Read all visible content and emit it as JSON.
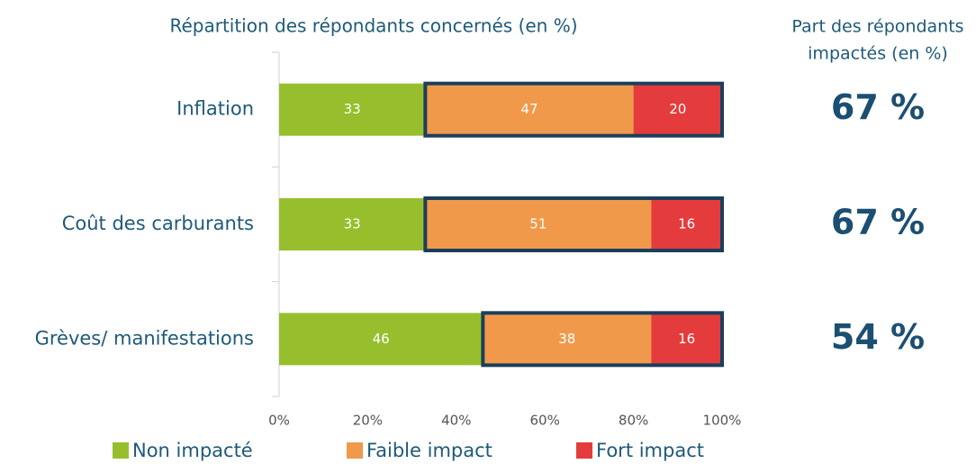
{
  "chart_data": {
    "type": "stacked-bar-horizontal",
    "title": "Répartition des répondants concernés (en %)",
    "categories": [
      "Inflation",
      "Coût des carburants",
      "Grèves/ manifestations"
    ],
    "series": [
      {
        "name": "Non impacté",
        "color": "#97bf2d",
        "values": [
          33,
          33,
          46
        ]
      },
      {
        "name": "Faible impact",
        "color": "#f0994b",
        "values": [
          47,
          51,
          38
        ]
      },
      {
        "name": "Fort impact",
        "color": "#e43b3c",
        "values": [
          20,
          16,
          16
        ]
      }
    ],
    "xlim": [
      0,
      100
    ],
    "xticks": [
      {
        "value": 0,
        "label": "0%"
      },
      {
        "value": 20,
        "label": "20%"
      },
      {
        "value": 40,
        "label": "40%"
      },
      {
        "value": 60,
        "label": "60%"
      },
      {
        "value": 80,
        "label": "80%"
      },
      {
        "value": 100,
        "label": "100%"
      }
    ],
    "side_title": [
      "Part des répondants",
      "impactés (en %)"
    ],
    "side_values": [
      67,
      67,
      54
    ],
    "side_value_labels": [
      "67 %",
      "67 %",
      "54 %"
    ]
  }
}
